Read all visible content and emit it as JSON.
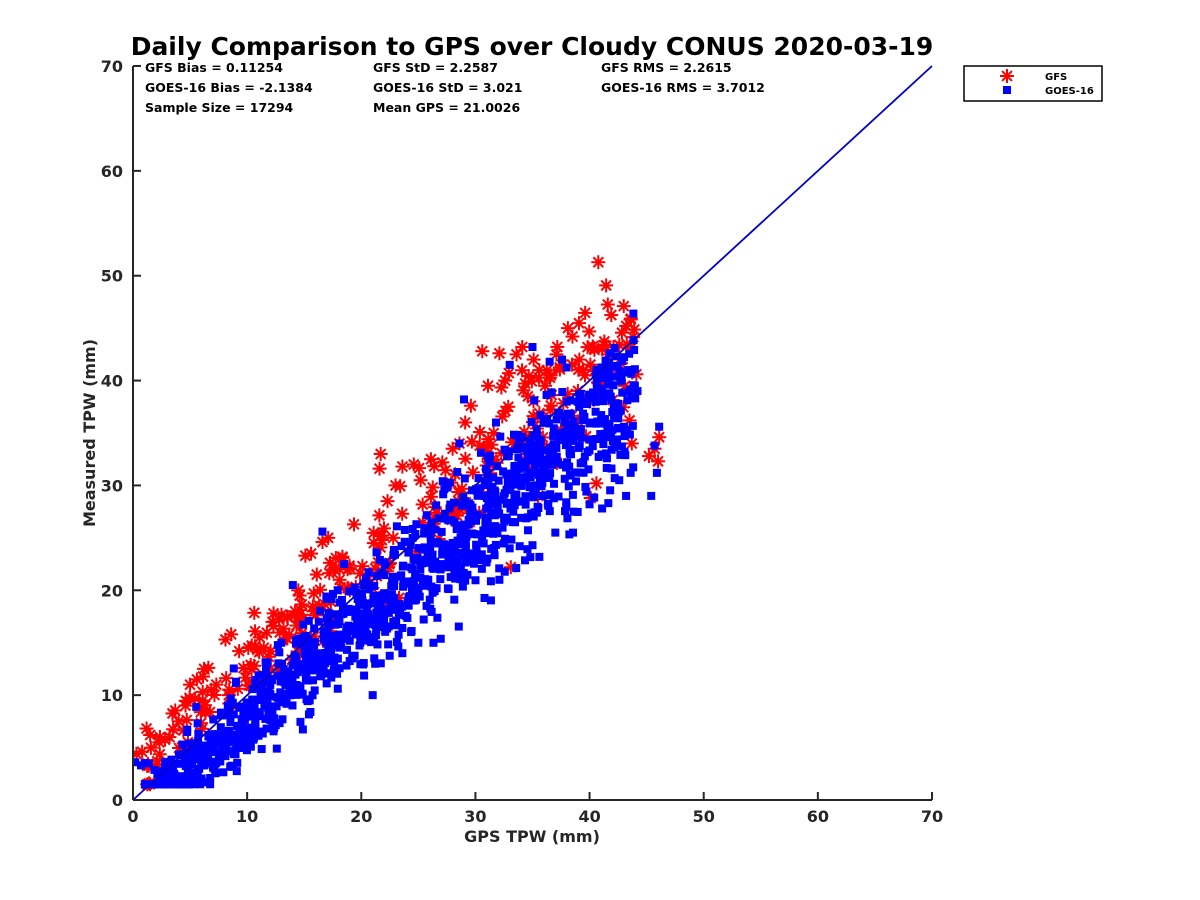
{
  "stats": {
    "gfs_bias": "GFS Bias = 0.11254",
    "goes_bias": "GOES-16 Bias = -2.1384",
    "sample_size": "Sample Size = 17294",
    "gfs_std": "GFS StD = 2.2587",
    "goes_std": "GOES-16 StD = 3.021",
    "mean_gps": "Mean GPS = 21.0026",
    "gfs_rms": "GFS RMS = 2.2615",
    "goes_rms": "GOES-16 RMS = 3.7012"
  },
  "chart_data": {
    "type": "scatter",
    "title": "Daily Comparison to GPS over Cloudy CONUS 2020-03-19",
    "xlabel": "GPS TPW (mm)",
    "ylabel": "Measured TPW (mm)",
    "xlim": [
      0,
      70
    ],
    "ylim": [
      0,
      70
    ],
    "xticks": [
      "0",
      "10",
      "20",
      "30",
      "40",
      "50",
      "60",
      "70"
    ],
    "yticks": [
      "0",
      "10",
      "20",
      "30",
      "40",
      "50",
      "60",
      "70"
    ],
    "grid": false,
    "legend_position": "outside top-right",
    "reference_line": {
      "x": [
        0,
        70
      ],
      "y": [
        0,
        70
      ],
      "color": "#0000cc"
    },
    "series": [
      {
        "name": "GFS",
        "marker": "asterisk",
        "color": "#ff0000",
        "points": [
          [
            0.3,
            4.4
          ],
          [
            0.8,
            4.6
          ],
          [
            1.5,
            6.2
          ],
          [
            2.3,
            5.5
          ],
          [
            3.2,
            6.0
          ],
          [
            4.0,
            7.5
          ],
          [
            4.6,
            9.0
          ],
          [
            5.0,
            11.0
          ],
          [
            5.6,
            11.5
          ],
          [
            6.1,
            9.5
          ],
          [
            6.6,
            12.6
          ],
          [
            7.3,
            11.0
          ],
          [
            8.1,
            15.3
          ],
          [
            8.6,
            15.8
          ],
          [
            9.3,
            14.2
          ],
          [
            10.1,
            14.5
          ],
          [
            11.1,
            15.5
          ],
          [
            12.3,
            16.6
          ],
          [
            12.8,
            17.2
          ],
          [
            13.5,
            17.5
          ],
          [
            14.2,
            18.0
          ],
          [
            14.6,
            19.5
          ],
          [
            15.1,
            23.3
          ],
          [
            15.6,
            23.5
          ],
          [
            16.1,
            21.5
          ],
          [
            16.6,
            24.6
          ],
          [
            17.1,
            25.0
          ],
          [
            17.6,
            22.0
          ],
          [
            18.1,
            21.0
          ],
          [
            19.0,
            20.0
          ],
          [
            20.1,
            22.3
          ],
          [
            20.6,
            21.0
          ],
          [
            21.1,
            24.5
          ],
          [
            21.6,
            31.6
          ],
          [
            21.7,
            33.0
          ],
          [
            22.3,
            28.5
          ],
          [
            23.0,
            30.0
          ],
          [
            23.6,
            31.8
          ],
          [
            24.6,
            32.0
          ],
          [
            25.2,
            30.5
          ],
          [
            26.1,
            32.5
          ],
          [
            27.1,
            32.2
          ],
          [
            28.0,
            33.5
          ],
          [
            28.6,
            34.0
          ],
          [
            29.1,
            36.0
          ],
          [
            29.6,
            37.6
          ],
          [
            30.6,
            42.8
          ],
          [
            31.1,
            39.5
          ],
          [
            32.1,
            42.6
          ],
          [
            32.6,
            40.0
          ],
          [
            33.1,
            22.2
          ],
          [
            33.6,
            42.5
          ],
          [
            34.1,
            43.2
          ],
          [
            34.6,
            38.5
          ],
          [
            35.1,
            42.0
          ],
          [
            35.6,
            41.0
          ],
          [
            36.1,
            39.5
          ],
          [
            36.6,
            40.5
          ],
          [
            37.1,
            42.5
          ],
          [
            37.6,
            41.5
          ],
          [
            38.1,
            45.0
          ],
          [
            38.5,
            44.2
          ],
          [
            39.1,
            42.0
          ],
          [
            39.6,
            40.5
          ],
          [
            40.1,
            28.8
          ],
          [
            40.6,
            30.2
          ],
          [
            41.1,
            43.0
          ],
          [
            41.6,
            42.5
          ],
          [
            42.1,
            43.2
          ],
          [
            42.6,
            43.4
          ],
          [
            43.1,
            39.5
          ],
          [
            43.5,
            36.2
          ],
          [
            43.7,
            34.0
          ],
          [
            44.1,
            40.6
          ],
          [
            45.2,
            32.8
          ],
          [
            45.7,
            33.5
          ],
          [
            46.1,
            34.6
          ],
          [
            46.0,
            32.3
          ],
          [
            29.5,
            26.5
          ],
          [
            35.5,
            29.0
          ],
          [
            15.8,
            18.0
          ],
          [
            18.8,
            22.0
          ],
          [
            12.0,
            12.5
          ],
          [
            27.5,
            27.0
          ],
          [
            22.8,
            25.0
          ],
          [
            40.0,
            38.0
          ],
          [
            31.6,
            35.0
          ],
          [
            8.4,
            10.0
          ],
          [
            4.3,
            5.0
          ],
          [
            26.3,
            26.0
          ]
        ],
        "bands": [
          {
            "x": [
              1,
              44
            ],
            "center_intercept": 2.5,
            "center_slope": 0.98,
            "spread": 2.4,
            "count": 260
          }
        ]
      },
      {
        "name": "GOES-16",
        "marker": "square",
        "color": "#0000ff",
        "points": [
          [
            0.2,
            3.6
          ],
          [
            0.7,
            3.3
          ],
          [
            1.4,
            3.5
          ],
          [
            3.5,
            2.0
          ],
          [
            4.1,
            1.6
          ],
          [
            5.2,
            5.0
          ],
          [
            7.6,
            4.2
          ],
          [
            9.5,
            6.0
          ],
          [
            12.6,
            4.9
          ],
          [
            15.2,
            9.6
          ],
          [
            16.6,
            25.6
          ],
          [
            17.5,
            15.0
          ],
          [
            19.2,
            13.5
          ],
          [
            21.0,
            10.0
          ],
          [
            22.8,
            17.0
          ],
          [
            23.6,
            14.0
          ],
          [
            25.0,
            15.0
          ],
          [
            26.6,
            20.2
          ],
          [
            28.6,
            34.0
          ],
          [
            29.0,
            38.2
          ],
          [
            30.0,
            27.0
          ],
          [
            33.0,
            24.0
          ],
          [
            35.0,
            24.3
          ],
          [
            37.0,
            25.5
          ],
          [
            38.6,
            27.5
          ],
          [
            40.0,
            28.2
          ],
          [
            41.1,
            27.8
          ],
          [
            42.6,
            30.5
          ],
          [
            43.2,
            29.0
          ],
          [
            43.6,
            31.2
          ],
          [
            44.2,
            39.0
          ],
          [
            44.0,
            38.3
          ],
          [
            45.4,
            29.0
          ],
          [
            45.9,
            31.2
          ],
          [
            46.1,
            35.6
          ],
          [
            45.7,
            33.8
          ],
          [
            42.2,
            43.1
          ],
          [
            35.0,
            43.2
          ],
          [
            33.0,
            41.5
          ],
          [
            14.0,
            20.5
          ],
          [
            13.0,
            15.0
          ],
          [
            11.0,
            8.0
          ],
          [
            24.5,
            25.0
          ],
          [
            36.5,
            41.8
          ],
          [
            31.8,
            36.0
          ],
          [
            18.5,
            22.5
          ],
          [
            27.5,
            30.0
          ],
          [
            39.5,
            36.5
          ]
        ],
        "bands": [
          {
            "x": [
              1,
              44
            ],
            "center_intercept": -1.8,
            "center_slope": 0.93,
            "spread": 2.6,
            "count": 1300
          }
        ]
      }
    ]
  }
}
